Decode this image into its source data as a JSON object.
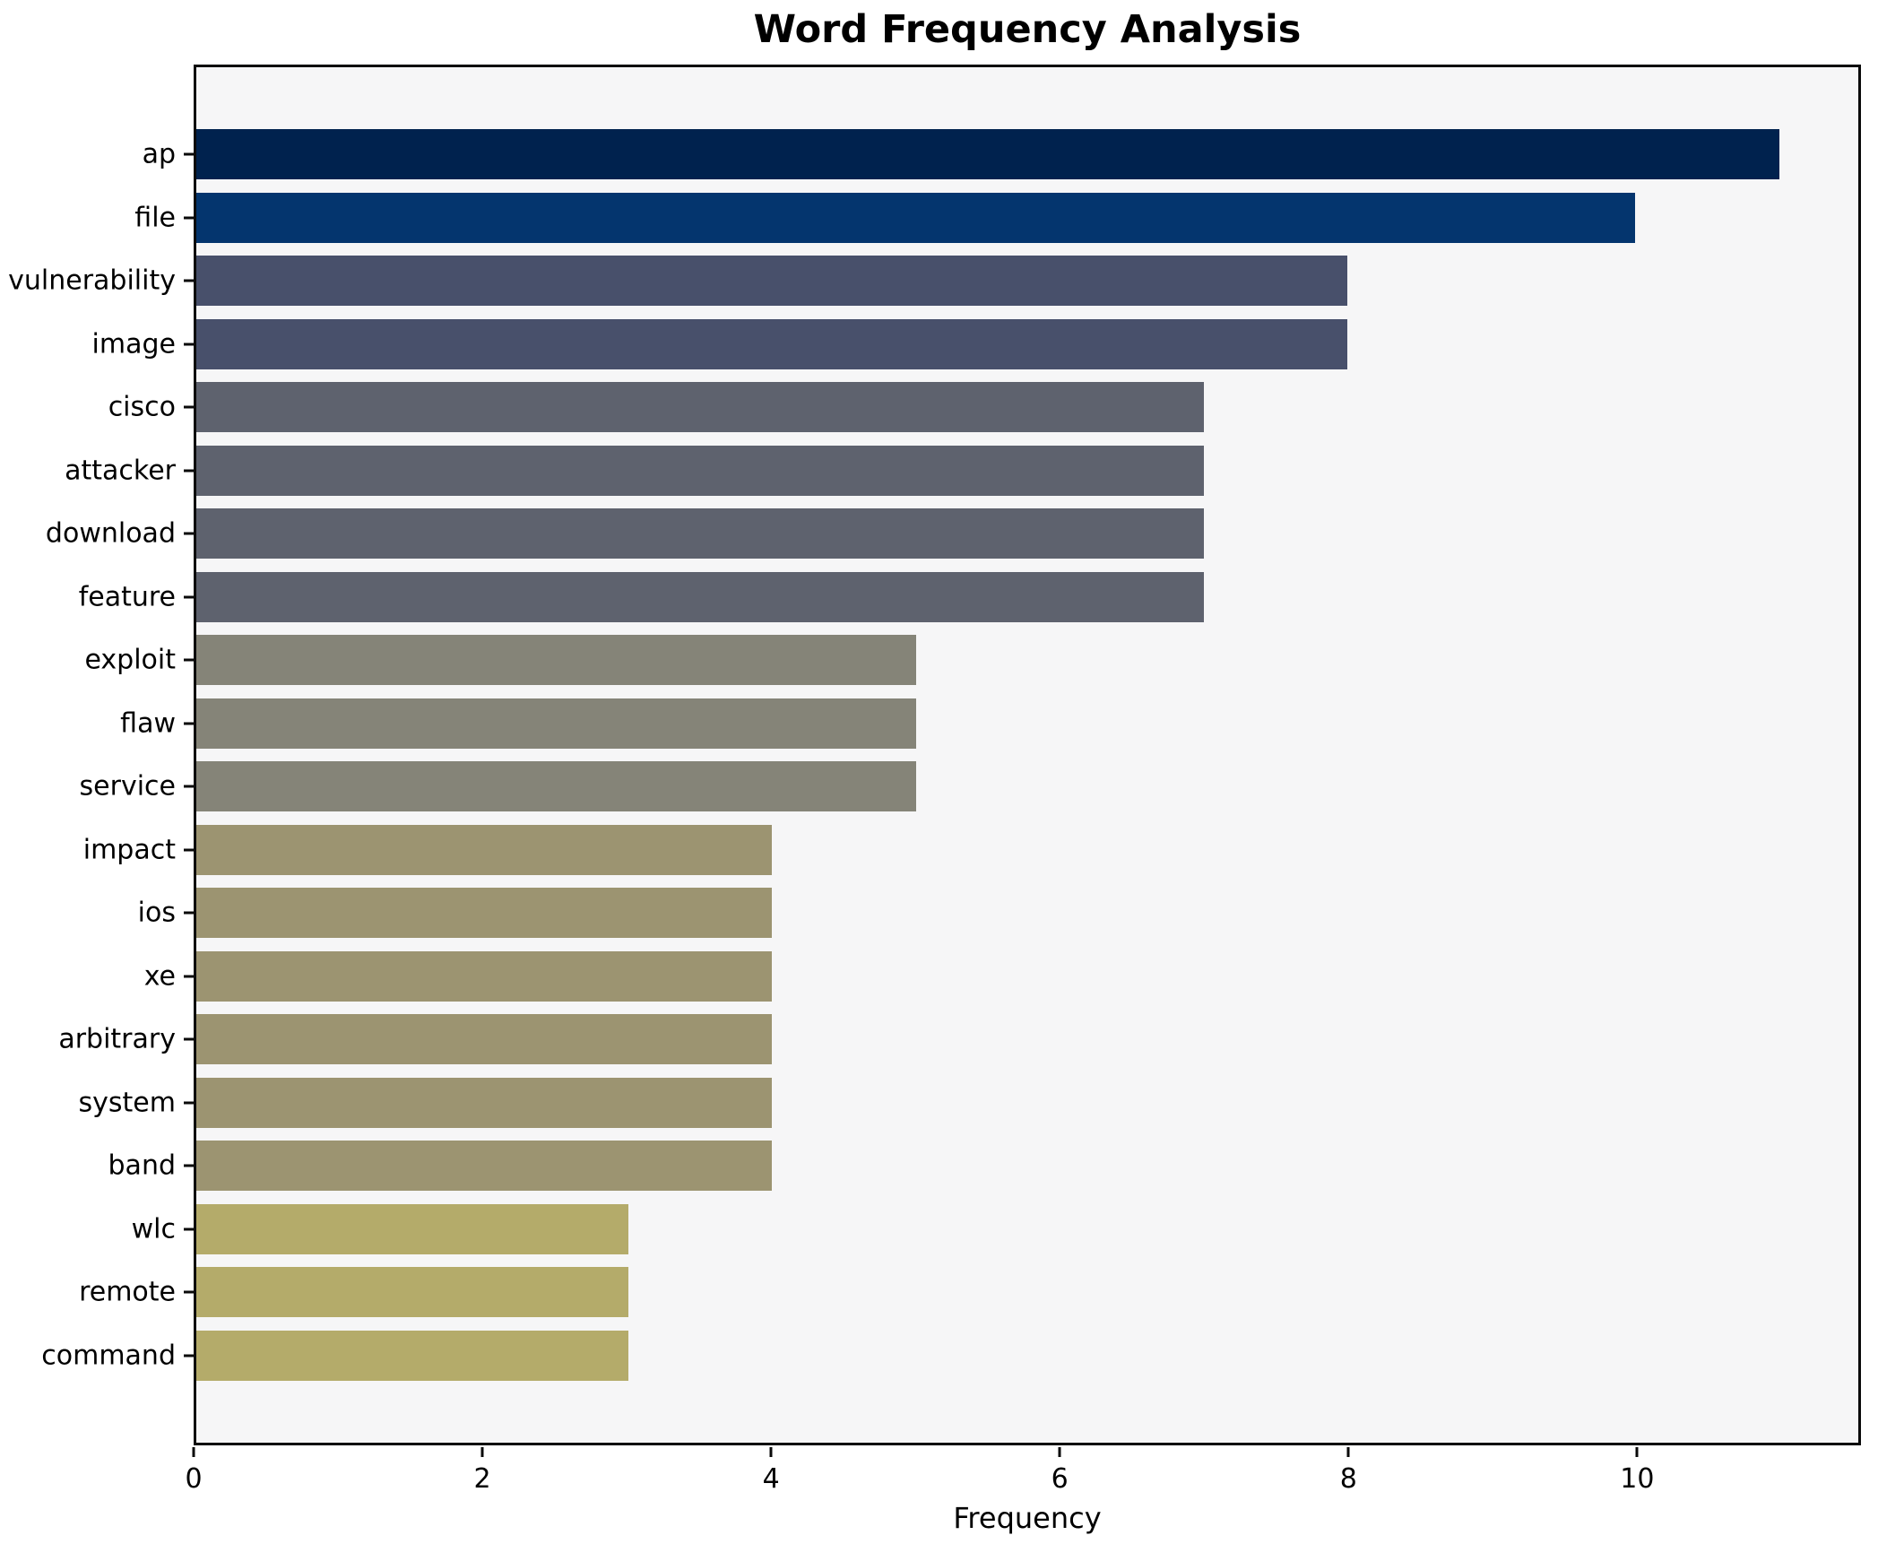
{
  "title": "Word Frequency Analysis",
  "chart_data": {
    "type": "bar",
    "orientation": "horizontal",
    "title": "Word Frequency Analysis",
    "xlabel": "Frequency",
    "ylabel": "",
    "categories": [
      "ap",
      "file",
      "vulnerability",
      "image",
      "cisco",
      "attacker",
      "download",
      "feature",
      "exploit",
      "flaw",
      "service",
      "impact",
      "ios",
      "xe",
      "arbitrary",
      "system",
      "band",
      "wlc",
      "remote",
      "command"
    ],
    "values": [
      11,
      10,
      8,
      8,
      7,
      7,
      7,
      7,
      5,
      5,
      5,
      4,
      4,
      4,
      4,
      4,
      4,
      3,
      3,
      3
    ],
    "bar_colors": [
      "#00224E",
      "#04356E",
      "#48506B",
      "#48506B",
      "#5E626E",
      "#5E626E",
      "#5E626E",
      "#5E626E",
      "#858478",
      "#858478",
      "#858478",
      "#9C9471",
      "#9C9471",
      "#9C9471",
      "#9C9471",
      "#9C9471",
      "#9C9471",
      "#B4AB6A",
      "#B4AB6A",
      "#B4AB6A"
    ],
    "x_ticks": [
      "0",
      "2",
      "4",
      "6",
      "8",
      "10"
    ],
    "x_tick_values": [
      0,
      2,
      4,
      6,
      8,
      10
    ],
    "xlim": [
      0,
      11.55
    ],
    "grid": false,
    "legend": null,
    "colormap": "cividis",
    "colors": {
      "figure_background": "#FFFFFF",
      "plot_background": "#F6F6F7",
      "spine": "#0A0A0A",
      "text": "#000000"
    }
  }
}
